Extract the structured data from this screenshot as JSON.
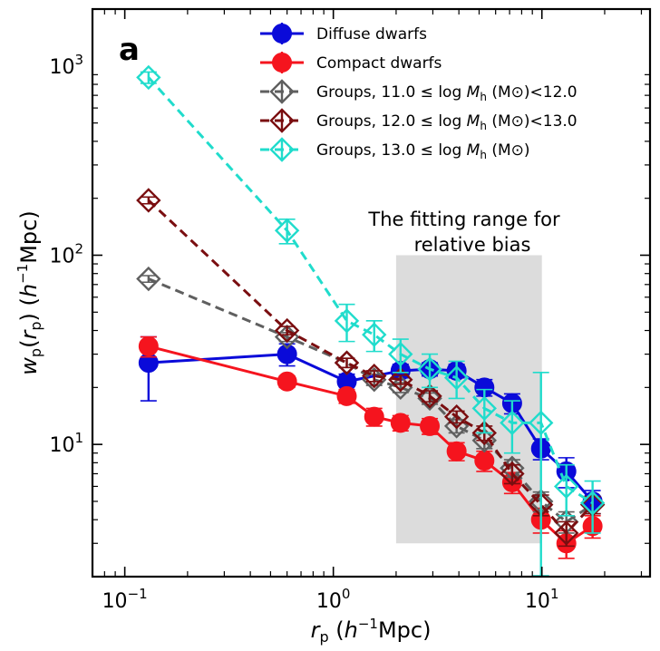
{
  "chart_data": {
    "type": "scatter",
    "panel_label": "a",
    "xscale": "log",
    "yscale": "log",
    "xlim": [
      0.07,
      33
    ],
    "ylim": [
      2.0,
      2000
    ],
    "xlabel": {
      "main": "r",
      "sub": "p",
      "pre": " (",
      "ital": "h",
      "sup": "−1",
      "post": "Mpc)"
    },
    "ylabel": {
      "main": "w",
      "sub": "p",
      "paren": "(r",
      "sub2": "p",
      "close": ")",
      "pre": " (",
      "ital": "h",
      "sup": "−1",
      "post": "Mpc)"
    },
    "x_ticks": [
      {
        "value": 0.1,
        "base": "10",
        "exp": "−1"
      },
      {
        "value": 1,
        "base": "10",
        "exp": "0"
      },
      {
        "value": 10,
        "base": "10",
        "exp": "1"
      }
    ],
    "y_ticks": [
      {
        "value": 10,
        "base": "10",
        "exp": "1"
      },
      {
        "value": 100,
        "base": "10",
        "exp": "2"
      },
      {
        "value": 1000,
        "base": "10",
        "exp": "3"
      }
    ],
    "shaded_region": {
      "x": [
        2.0,
        10.0
      ],
      "y": [
        3.0,
        100.0
      ],
      "label_line1": "The fitting range for",
      "label_line2": "relative bias",
      "color": "#dcdcdc"
    },
    "legend_position": "top-right",
    "series": [
      {
        "name": "Diffuse dwarfs",
        "color": "#0a0ad9",
        "marker": "circle",
        "dashed": false,
        "x": [
          0.13,
          0.6,
          1.16,
          2.1,
          2.9,
          3.9,
          5.3,
          7.2,
          9.9,
          13.1,
          17.5
        ],
        "y": [
          27,
          30,
          21.5,
          24.5,
          25,
          24.5,
          20,
          16.5,
          9.5,
          7.2,
          5.0
        ],
        "err": [
          10,
          4,
          2,
          2,
          2,
          2,
          2,
          2,
          1.2,
          1.3,
          0.7
        ]
      },
      {
        "name": "Compact dwarfs",
        "color": "#f5141e",
        "marker": "circle",
        "dashed": false,
        "x": [
          0.13,
          0.6,
          1.16,
          1.57,
          2.1,
          2.9,
          3.9,
          5.3,
          7.2,
          9.9,
          13.1,
          17.5
        ],
        "y": [
          33,
          21.5,
          18,
          14,
          13,
          12.5,
          9.2,
          8.2,
          6.3,
          4.0,
          3.0,
          3.7
        ],
        "err": [
          4,
          1.5,
          1.5,
          1.5,
          1.2,
          1.2,
          1,
          1,
          0.8,
          0.6,
          0.5,
          0.5
        ]
      },
      {
        "name": "Groups, 11.0 ≤ log M_h (M⊙) < 12.0",
        "label": {
          "pre": "Groups, 11.0 ≤ log ",
          "ital": "M",
          "sub": "h",
          "post": " (M⊙)<12.0"
        },
        "color": "#5f5f5f",
        "marker": "diamond",
        "dashed": true,
        "x": [
          0.13,
          0.6,
          1.16,
          1.57,
          2.1,
          2.9,
          3.9,
          5.3,
          7.2,
          9.9,
          13.1,
          17.5
        ],
        "y": [
          75,
          37,
          27,
          22,
          20,
          17.5,
          12.5,
          10.5,
          7.5,
          5.0,
          3.9,
          4.8
        ],
        "err": [
          3,
          2,
          1.5,
          1.5,
          1.2,
          1.2,
          1,
          1,
          0.8,
          0.6,
          0.5,
          0.5
        ]
      },
      {
        "name": "Groups, 12.0 ≤ log M_h (M⊙) < 13.0",
        "label": {
          "pre": "Groups, 12.0 ≤ log ",
          "ital": "M",
          "sub": "h",
          "post": " (M⊙)<13.0"
        },
        "color": "#7a0e10",
        "marker": "diamond",
        "dashed": true,
        "x": [
          0.13,
          0.6,
          1.16,
          1.57,
          2.1,
          2.9,
          3.9,
          5.3,
          7.2,
          9.9,
          13.1,
          17.5
        ],
        "y": [
          195,
          40,
          27,
          23,
          22,
          18,
          14,
          11.5,
          7,
          4.8,
          3.4,
          4.8
        ],
        "err": [
          8,
          2,
          1.5,
          1.5,
          1.2,
          1.2,
          1,
          1,
          0.8,
          0.6,
          0.5,
          0.5
        ]
      },
      {
        "name": "Groups, 13.0 ≤ log M_h (M⊙)",
        "label": {
          "pre": "Groups, 13.0 ≤ log ",
          "ital": "M",
          "sub": "h",
          "post": " (M⊙)"
        },
        "color": "#20dccc",
        "marker": "diamond",
        "dashed": true,
        "x": [
          0.13,
          0.6,
          1.16,
          1.57,
          2.1,
          2.9,
          3.9,
          5.3,
          7.2,
          9.9,
          13.1,
          17.5
        ],
        "y": [
          870,
          135,
          45,
          38,
          30,
          25,
          22.5,
          15.5,
          13,
          13,
          6.0,
          4.9
        ],
        "err": [
          60,
          20,
          10,
          7,
          6,
          5,
          5,
          4,
          4,
          11,
          1.8,
          1.5
        ]
      }
    ]
  }
}
